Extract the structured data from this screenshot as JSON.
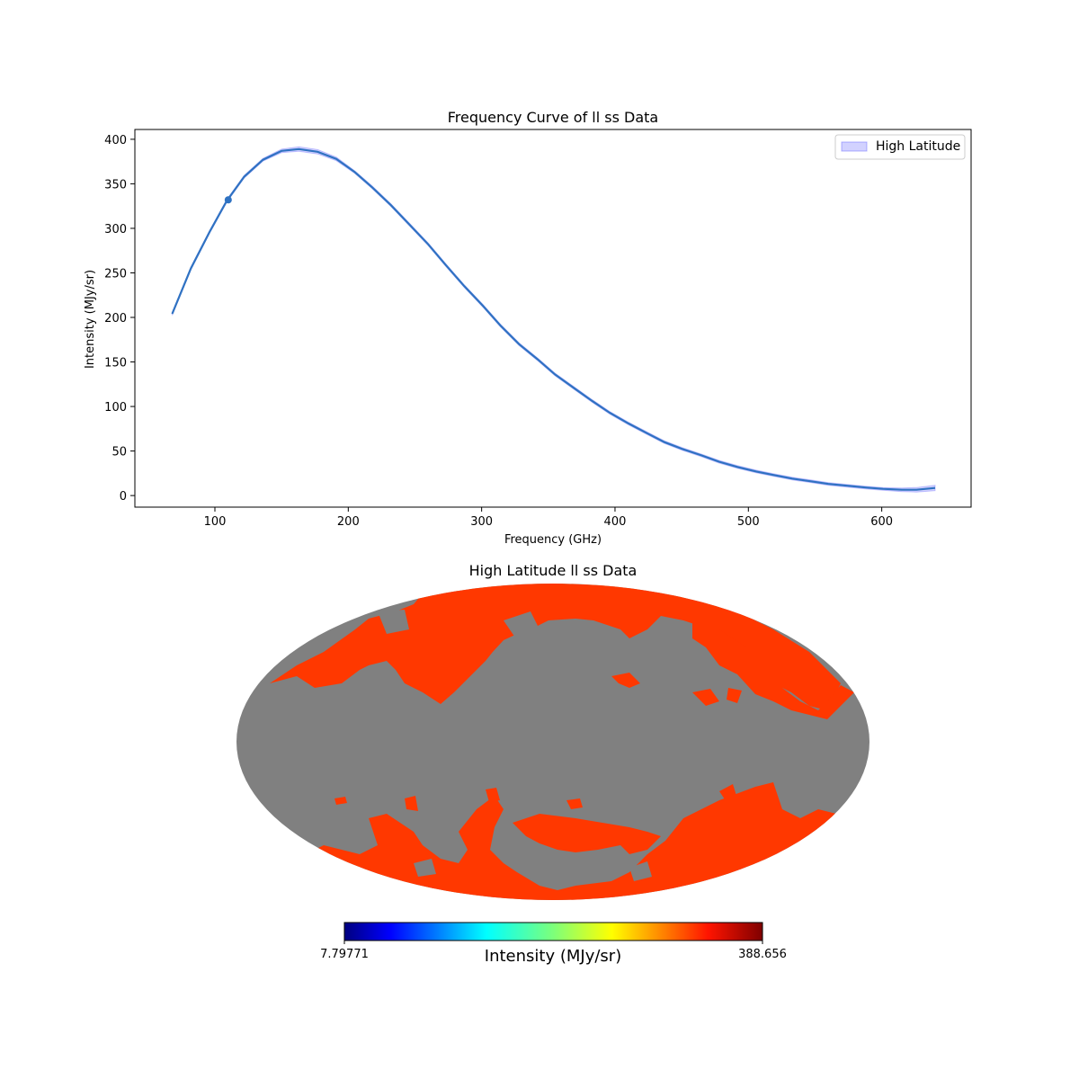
{
  "chart_data": [
    {
      "type": "line",
      "title": "Frequency Curve of ll ss Data",
      "xlabel": "Frequency (GHz)",
      "ylabel": "Intensity (MJy/sr)",
      "xlim": [
        40,
        667
      ],
      "ylim": [
        -13,
        411
      ],
      "xticks": [
        100,
        200,
        300,
        400,
        500,
        600
      ],
      "yticks": [
        0,
        50,
        100,
        150,
        200,
        250,
        300,
        350,
        400
      ],
      "legend": {
        "label": "High Latitude",
        "position": "top-right"
      },
      "colors": {
        "line": "#2f72c2",
        "band": "#6a6aff"
      },
      "series": [
        {
          "name": "High Latitude",
          "x": [
            68,
            82,
            96,
            109,
            122,
            136,
            150,
            163,
            177,
            191,
            205,
            218,
            232,
            246,
            260,
            273,
            287,
            301,
            314,
            328,
            342,
            355,
            369,
            383,
            396,
            410,
            424,
            437,
            451,
            465,
            478,
            492,
            506,
            519,
            533,
            547,
            560,
            574,
            588,
            601,
            615,
            626,
            640
          ],
          "y": [
            204,
            255,
            296,
            331,
            358,
            377,
            387,
            389,
            386,
            378,
            363,
            346,
            326,
            304,
            282,
            259,
            235,
            213,
            191,
            170,
            153,
            136,
            121,
            106,
            93,
            81,
            70,
            60,
            52,
            45,
            38,
            32,
            27,
            23,
            19,
            16,
            13,
            11,
            9,
            7.5,
            6.5,
            6.5,
            8.5
          ],
          "band_width": [
            1.5,
            1.5,
            1.5,
            1.5,
            1.5,
            1.5,
            2,
            2.5,
            2.5,
            2,
            1.5,
            1.5,
            1.5,
            1.5,
            1.5,
            1.5,
            1.5,
            1.5,
            1.5,
            1.5,
            1.5,
            1.5,
            1.5,
            1.5,
            1.5,
            1.5,
            1.5,
            1.5,
            1.5,
            1.5,
            1.5,
            1.5,
            1.5,
            1.5,
            1.5,
            1.5,
            1.5,
            1.5,
            1.5,
            1.5,
            2,
            2.5,
            3
          ]
        }
      ],
      "marker": {
        "x": 110,
        "y": 332
      }
    },
    {
      "type": "heatmap",
      "title": "High Latitude ll ss Data",
      "projection": "mollweide",
      "colorbar": {
        "label": "Intensity (MJy/sr)",
        "min_label": "7.79771",
        "max_label": "388.656",
        "colormap": "jet"
      },
      "colors": {
        "masked": "#808080",
        "data": "#ff3800",
        "data_dark": "#d40000"
      }
    }
  ]
}
